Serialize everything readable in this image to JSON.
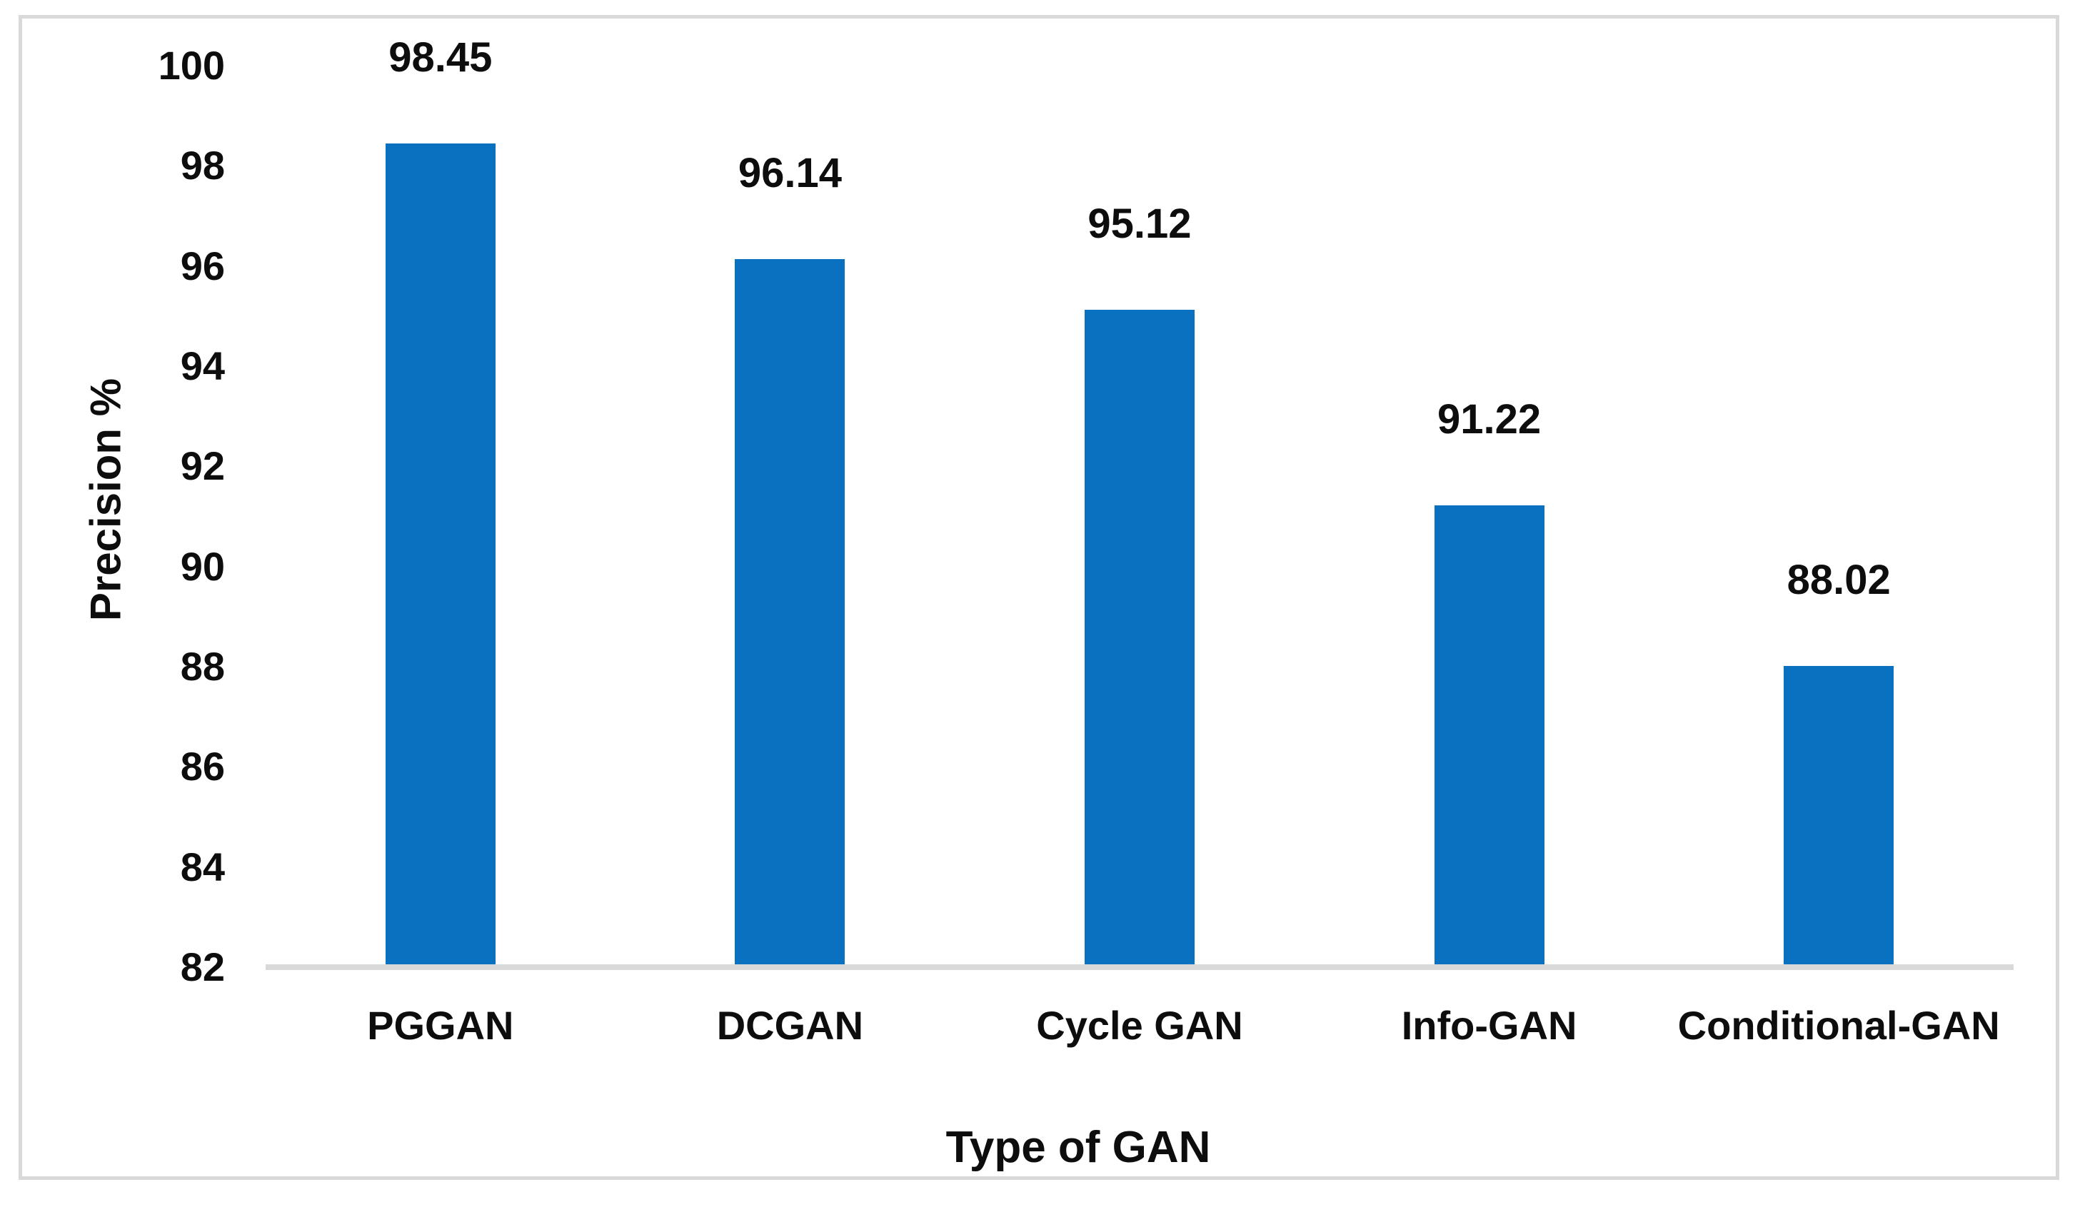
{
  "figure": {
    "background_color": "#ffffff",
    "border_color": "#d9d9d9"
  },
  "chart_data": {
    "type": "bar",
    "title": "",
    "categories": [
      "PGGAN",
      "DCGAN",
      "Cycle GAN",
      "Info-GAN",
      "Conditional-GAN"
    ],
    "values": [
      98.45,
      96.14,
      95.12,
      91.22,
      88.02
    ],
    "value_labels": [
      "98.45",
      "96.14",
      "95.12",
      "91.22",
      "88.02"
    ],
    "xlabel": "Type of GAN",
    "ylabel": "Precision %",
    "ylim": [
      82,
      100
    ],
    "y_ticks": [
      100,
      98,
      96,
      94,
      92,
      90,
      88,
      86,
      84,
      82
    ],
    "bar_color": "#0a71c0",
    "axis_line_color": "#d9d9d9",
    "text_color": "#0d0d0d",
    "grid": false,
    "legend": false,
    "data_label_position": "outside-end-above"
  }
}
